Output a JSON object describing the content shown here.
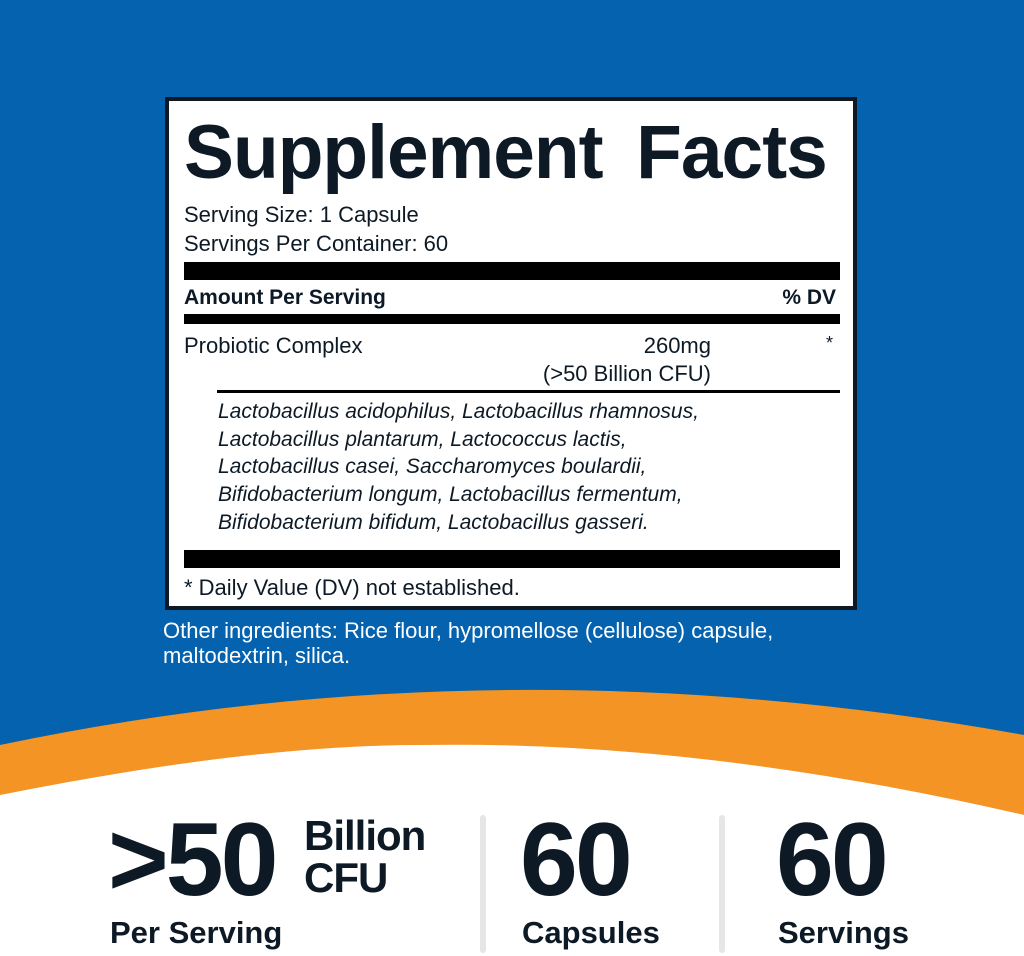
{
  "colors": {
    "background": "#0562ae",
    "accent": "#f39424",
    "text": "#0d1a26"
  },
  "label": {
    "title": "Supplement Facts",
    "serving_size": "Serving Size: 1 Capsule",
    "servings_per_container": "Servings Per Container: 60",
    "amount_header": "Amount Per Serving",
    "dv_header": "% DV",
    "ingredient": {
      "name": "Probiotic Complex",
      "amount": "260mg",
      "cfu": "(>50 Billion CFU)",
      "dv": "*"
    },
    "strains": [
      "Lactobacillus acidophilus, Lactobacillus rhamnosus,",
      "Lactobacillus plantarum, Lactococcus lactis,",
      "Lactobacillus casei, Saccharomyces boulardii,",
      "Bifidobacterium longum, Lactobacillus fermentum,",
      "Bifidobacterium bifidum, Lactobacillus gasseri."
    ],
    "footnote": "* Daily Value (DV) not established."
  },
  "other_ingredients": [
    "Other ingredients: Rice flour, hypromellose (cellulose) capsule,",
    "maltodextrin, silica."
  ],
  "stats": [
    {
      "value": ">50",
      "unit_line1": "Billion",
      "unit_line2": "CFU",
      "caption": "Per Serving"
    },
    {
      "value": "60",
      "caption": "Capsules"
    },
    {
      "value": "60",
      "caption": "Servings"
    }
  ]
}
